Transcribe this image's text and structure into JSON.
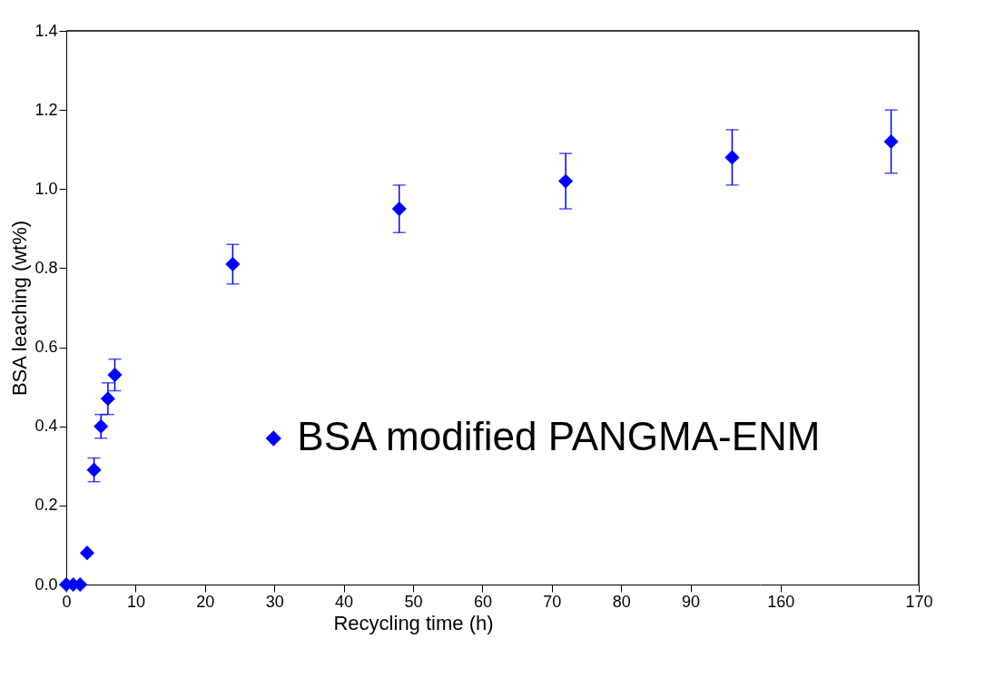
{
  "chart_data": [
    {
      "type": "scatter",
      "xlabel": "Recycling time (h)",
      "ylabel": "BSA leaching (wt%)",
      "marker": "diamond",
      "legend": "bottom right",
      "grid": false,
      "xlim": [
        0,
        100
      ],
      "xticks": [
        0,
        10,
        20,
        30,
        40,
        50,
        60,
        70,
        80,
        90
      ],
      "ylim": [
        0,
        1.4
      ],
      "yticks": [
        {
          "value": 0,
          "label": "0.0"
        },
        0.2,
        0.4,
        0.6,
        0.8,
        {
          "value": 1,
          "label": "1.0"
        },
        1.2,
        1.4
      ],
      "series": [
        {
          "name": "BSA modified PANGMA-ENM",
          "color": "#0000ff",
          "x": [
            0,
            1,
            2,
            3,
            4,
            5,
            6,
            7,
            24,
            48,
            72,
            96
          ],
          "values": [
            0,
            0,
            0,
            0.08,
            0.29,
            0.4,
            0.47,
            0.53,
            0.81,
            0.95,
            1.02,
            1.08
          ],
          "errors": [
            null,
            null,
            null,
            null,
            [
              0.26,
              0.32
            ],
            [
              0.37,
              0.43
            ],
            [
              0.43,
              0.51
            ],
            [
              0.49,
              0.57
            ],
            [
              0.76,
              0.86
            ],
            [
              0.89,
              1.01
            ],
            [
              0.95,
              1.09
            ],
            [
              1.01,
              1.15
            ]
          ]
        }
      ]
    },
    {
      "type": "scatter",
      "marker": "diamond",
      "grid": false,
      "tick_labels": "x",
      "xlim": [
        158.5,
        170
      ],
      "xticks": [
        160,
        170
      ],
      "ylim": [
        0,
        1.4
      ],
      "series": [
        {
          "color": "#0000ff",
          "x": [
            168
          ],
          "values": [
            1.12
          ],
          "errors": [
            [
              1.04,
              1.2
            ]
          ]
        }
      ]
    }
  ]
}
